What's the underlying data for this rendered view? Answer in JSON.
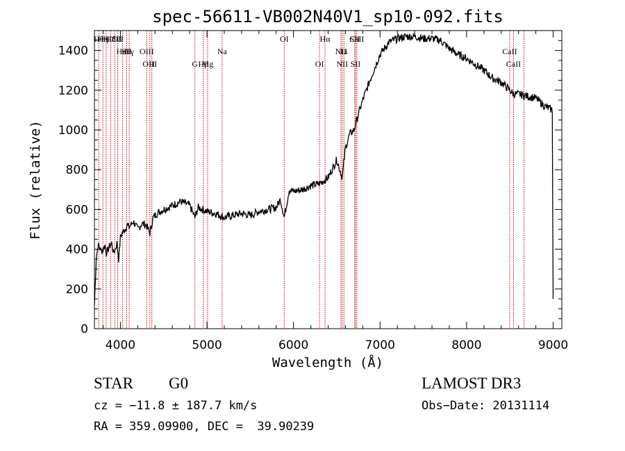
{
  "chart_data": {
    "type": "line",
    "title": "spec-56611-VB002N40V1_sp10-092.fits",
    "xlabel": "Wavelength (Å)",
    "ylabel": "Flux (relative)",
    "xlim": [
      3700,
      9100
    ],
    "ylim": [
      0,
      1500
    ],
    "xticks": [
      4000,
      5000,
      6000,
      7000,
      8000,
      9000
    ],
    "yticks": [
      0,
      200,
      400,
      600,
      800,
      1000,
      1200,
      1400
    ],
    "grid": false,
    "series": [
      {
        "name": "flux",
        "x": [
          3700,
          3720,
          3740,
          3760,
          3780,
          3800,
          3820,
          3840,
          3860,
          3880,
          3900,
          3920,
          3940,
          3960,
          3980,
          4000,
          4020,
          4050,
          4080,
          4100,
          4150,
          4200,
          4250,
          4300,
          4340,
          4380,
          4420,
          4500,
          4600,
          4700,
          4800,
          4860,
          4900,
          5000,
          5100,
          5200,
          5300,
          5400,
          5500,
          5600,
          5700,
          5800,
          5850,
          5893,
          5950,
          6000,
          6100,
          6200,
          6300,
          6400,
          6500,
          6563,
          6600,
          6650,
          6700,
          6750,
          6800,
          6900,
          7000,
          7100,
          7200,
          7300,
          7400,
          7500,
          7600,
          7700,
          7800,
          7900,
          8000,
          8100,
          8200,
          8300,
          8400,
          8500,
          8542,
          8600,
          8700,
          8800,
          8900,
          8990,
          9000
        ],
        "values": [
          120,
          350,
          420,
          410,
          390,
          400,
          420,
          380,
          400,
          420,
          430,
          380,
          400,
          430,
          350,
          460,
          480,
          500,
          520,
          510,
          540,
          500,
          530,
          520,
          480,
          560,
          580,
          600,
          620,
          640,
          620,
          560,
          610,
          590,
          580,
          560,
          570,
          580,
          570,
          590,
          600,
          610,
          650,
          560,
          700,
          690,
          700,
          720,
          730,
          760,
          850,
          760,
          910,
          980,
          1000,
          1080,
          1150,
          1270,
          1380,
          1440,
          1460,
          1470,
          1470,
          1460,
          1460,
          1450,
          1410,
          1380,
          1360,
          1330,
          1300,
          1260,
          1240,
          1200,
          1180,
          1180,
          1170,
          1160,
          1120,
          1100,
          150
        ]
      }
    ],
    "lines": [
      {
        "wl": 3750,
        "label": "Hθ",
        "row": 0
      },
      {
        "wl": 3798,
        "label": "Hη",
        "row": 0
      },
      {
        "wl": 3835,
        "label": "K",
        "row": 0
      },
      {
        "wl": 3889,
        "label": "Hδ",
        "row": 0
      },
      {
        "wl": 3934,
        "label": "OIII",
        "row": 0
      },
      {
        "wl": 3969,
        "label": "OII",
        "row": 0
      },
      {
        "wl": 4026,
        "label": "HeI",
        "row": 1
      },
      {
        "wl": 4072,
        "label": "SII",
        "row": 1
      },
      {
        "wl": 4102,
        "label": "Hγ",
        "row": 1
      },
      {
        "wl": 4304,
        "label": "OIII",
        "row": 1
      },
      {
        "wl": 4340,
        "label": "OIII",
        "row": 2
      },
      {
        "wl": 4363,
        "label": "H",
        "row": 2
      },
      {
        "wl": 4861,
        "label": "G",
        "row": 2
      },
      {
        "wl": 4959,
        "label": "Hβ",
        "row": 2
      },
      {
        "wl": 5007,
        "label": "Mg",
        "row": 2
      },
      {
        "wl": 5175,
        "label": "Na",
        "row": 1
      },
      {
        "wl": 5893,
        "label": "OI",
        "row": 0
      },
      {
        "wl": 6300,
        "label": "OI",
        "row": 2
      },
      {
        "wl": 6364,
        "label": "Hα",
        "row": 0
      },
      {
        "wl": 6548,
        "label": "NII",
        "row": 1
      },
      {
        "wl": 6563,
        "label": "NII",
        "row": 2
      },
      {
        "wl": 6583,
        "label": "Li",
        "row": 1
      },
      {
        "wl": 6708,
        "label": "SII",
        "row": 0
      },
      {
        "wl": 6716,
        "label": "SII",
        "row": 2
      },
      {
        "wl": 6731,
        "label": "CaII",
        "row": 0
      },
      {
        "wl": 8498,
        "label": "CaII",
        "row": 1
      },
      {
        "wl": 8542,
        "label": "CaII",
        "row": 2
      },
      {
        "wl": 8662,
        "label": "",
        "row": 0
      }
    ]
  },
  "info": {
    "object_class": "STAR",
    "subclass": "G0",
    "survey": "LAMOST DR3",
    "redshift": "cz = −11.8 ± 187.7 km/s",
    "obs_date": "Obs−Date: 20131114",
    "coords": "RA = 359.09900, DEC =  39.90239"
  },
  "colors": {
    "spectrum": "#000000",
    "line_marker": "#cc0000",
    "axes": "#000000"
  }
}
